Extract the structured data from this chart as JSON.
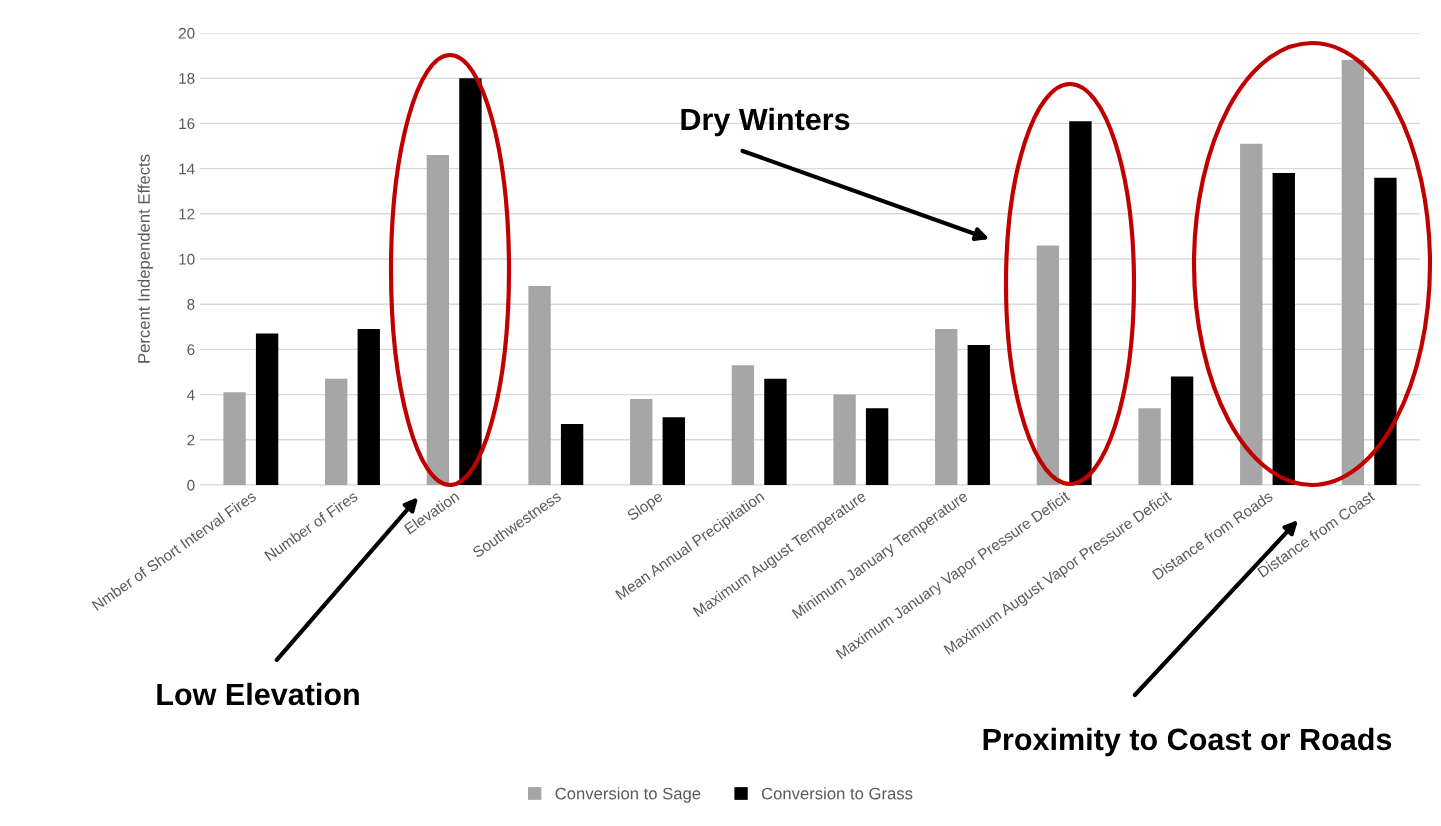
{
  "chart_data": {
    "type": "bar",
    "ylabel": "Percent Independent Effects",
    "categories": [
      "Nmber of Short Interval Fires",
      "Number of Fires",
      "Elevation",
      "Southwestness",
      "Slope",
      "Mean Annual Precipitation",
      "Maximum August Temperature",
      "Minimum January Temperature",
      "Maximum January Vapor Pressure Deficit",
      "Maximum August Vapor Pressure Deficit",
      "Distance from Roads",
      "Distance from Coast"
    ],
    "series": [
      {
        "name": "Conversion to Sage",
        "color": "#a6a6a6",
        "values": [
          4.1,
          4.7,
          14.6,
          8.8,
          3.8,
          5.3,
          4.0,
          6.9,
          10.6,
          3.4,
          15.1,
          18.8
        ]
      },
      {
        "name": "Conversion to Grass",
        "color": "#000000",
        "values": [
          6.7,
          6.9,
          18.0,
          2.7,
          3.0,
          4.7,
          3.4,
          6.2,
          16.1,
          4.8,
          13.8,
          13.6
        ]
      }
    ],
    "ylim": [
      0,
      20
    ],
    "yticks": [
      0,
      2,
      4,
      6,
      8,
      10,
      12,
      14,
      16,
      18,
      20
    ],
    "grid": "y",
    "legend": "bottom",
    "annotations": [
      "Dry Winters",
      "Low Elevation",
      "Proximity to Coast or Roads"
    ]
  }
}
